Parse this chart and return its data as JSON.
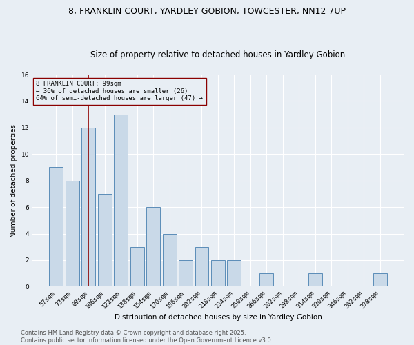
{
  "title": "8, FRANKLIN COURT, YARDLEY GOBION, TOWCESTER, NN12 7UP",
  "subtitle": "Size of property relative to detached houses in Yardley Gobion",
  "xlabel": "Distribution of detached houses by size in Yardley Gobion",
  "ylabel": "Number of detached properties",
  "categories": [
    "57sqm",
    "73sqm",
    "89sqm",
    "106sqm",
    "122sqm",
    "138sqm",
    "154sqm",
    "170sqm",
    "186sqm",
    "202sqm",
    "218sqm",
    "234sqm",
    "250sqm",
    "266sqm",
    "282sqm",
    "298sqm",
    "314sqm",
    "330sqm",
    "346sqm",
    "362sqm",
    "378sqm"
  ],
  "values": [
    9,
    8,
    12,
    7,
    13,
    3,
    6,
    4,
    2,
    3,
    2,
    2,
    0,
    1,
    0,
    0,
    1,
    0,
    0,
    0,
    1
  ],
  "bar_color": "#c9d9e8",
  "bar_edge_color": "#5b8db8",
  "ylim": [
    0,
    16
  ],
  "yticks": [
    0,
    2,
    4,
    6,
    8,
    10,
    12,
    14,
    16
  ],
  "property_label": "8 FRANKLIN COURT: 99sqm",
  "annotation_line1": "← 36% of detached houses are smaller (26)",
  "annotation_line2": "64% of semi-detached houses are larger (47) →",
  "vline_x": 2,
  "vline_color": "#8b0000",
  "footer1": "Contains HM Land Registry data © Crown copyright and database right 2025.",
  "footer2": "Contains public sector information licensed under the Open Government Licence v3.0.",
  "bg_color": "#e8eef4",
  "grid_color": "#ffffff",
  "title_fontsize": 9,
  "subtitle_fontsize": 8.5,
  "axis_label_fontsize": 7.5,
  "tick_fontsize": 6.5,
  "annotation_fontsize": 6.5,
  "footer_fontsize": 6
}
